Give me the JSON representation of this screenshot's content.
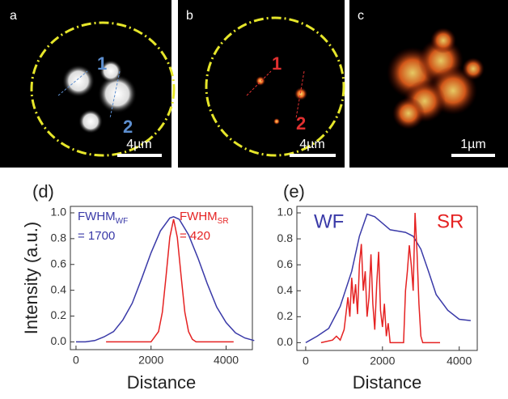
{
  "panels": [
    {
      "label": "a",
      "markers": [
        "1",
        "2"
      ],
      "scale_bar": "4µm"
    },
    {
      "label": "b",
      "markers": [
        "1",
        "2"
      ],
      "scale_bar": "4µm"
    },
    {
      "label": "c",
      "scale_bar": "1µm"
    }
  ],
  "chart_data": [
    {
      "type": "line",
      "panel_label": "(d)",
      "ylabel": "Intensity (a.u.)",
      "xlabel": "Distance",
      "xlim": [
        -150,
        4700
      ],
      "ylim": [
        -0.06,
        1.05
      ],
      "xticks": [
        0,
        2000,
        4000
      ],
      "yticks": [
        {
          "value": 0,
          "label": "0.0"
        },
        0.2,
        0.4,
        0.6,
        0.8,
        {
          "value": 1,
          "label": "1.0"
        }
      ],
      "annotations": [
        {
          "text": "FWHM",
          "subscript": "WF",
          "color": "#3a3aa8"
        },
        {
          "text": "= 1700",
          "color": "#3a3aa8"
        },
        {
          "text": "FWHM",
          "subscript": "SR",
          "color": "#e52222"
        },
        {
          "text": "= 420",
          "color": "#e52222"
        }
      ],
      "series": [
        {
          "color": "#3a3aa8",
          "x": [
            0,
            250,
            500,
            750,
            1000,
            1250,
            1500,
            1750,
            2000,
            2250,
            2500,
            2600,
            2750,
            3000,
            3250,
            3500,
            3750,
            4000,
            4250,
            4500,
            4750
          ],
          "values": [
            0.0,
            0.0,
            0.01,
            0.04,
            0.08,
            0.17,
            0.3,
            0.49,
            0.69,
            0.86,
            0.96,
            0.97,
            0.95,
            0.83,
            0.65,
            0.45,
            0.27,
            0.15,
            0.07,
            0.03,
            0.01
          ]
        },
        {
          "color": "#e52222",
          "x": [
            800,
            2000,
            2200,
            2300,
            2400,
            2500,
            2600,
            2700,
            2800,
            2900,
            3000,
            3100,
            3200,
            4200
          ],
          "values": [
            0,
            0,
            0.08,
            0.23,
            0.51,
            0.81,
            0.95,
            0.81,
            0.51,
            0.23,
            0.08,
            0.02,
            0,
            0
          ]
        }
      ]
    },
    {
      "type": "line",
      "panel_label": "(e)",
      "xlabel": "Distance",
      "xlim": [
        -230,
        4470
      ],
      "ylim": [
        -0.06,
        1.05
      ],
      "xticks": [
        0,
        2000,
        4000
      ],
      "yticks": [
        {
          "value": 0,
          "label": "0.0"
        },
        0.2,
        0.4,
        0.6,
        0.8,
        {
          "value": 1,
          "label": "1.0"
        }
      ],
      "series": [
        {
          "name": "WF",
          "color": "#3a3aa8",
          "x": [
            0,
            300,
            600,
            900,
            1200,
            1400,
            1600,
            1800,
            2000,
            2200,
            2400,
            2600,
            2800,
            3000,
            3200,
            3400,
            3700,
            4000,
            4300
          ],
          "values": [
            0.0,
            0.05,
            0.11,
            0.28,
            0.55,
            0.82,
            0.99,
            0.97,
            0.92,
            0.87,
            0.86,
            0.85,
            0.82,
            0.72,
            0.55,
            0.37,
            0.25,
            0.18,
            0.17
          ]
        },
        {
          "name": "SR",
          "color": "#e52222",
          "x": [
            400,
            700,
            800,
            900,
            1000,
            1100,
            1150,
            1200,
            1250,
            1300,
            1350,
            1400,
            1450,
            1500,
            1550,
            1600,
            1650,
            1700,
            1750,
            1800,
            1850,
            1900,
            1950,
            2000,
            2050,
            2100,
            2150,
            2200,
            2300,
            2550,
            2600,
            2650,
            2700,
            2750,
            2800,
            2850,
            2900,
            2950,
            3000,
            3050,
            3500
          ],
          "values": [
            0,
            0.02,
            0.05,
            0.02,
            0.1,
            0.35,
            0.2,
            0.5,
            0.3,
            0.45,
            0.22,
            0.6,
            0.76,
            0.4,
            0.55,
            0.2,
            0.35,
            0.68,
            0.3,
            0.1,
            0.45,
            0.7,
            0.25,
            0.12,
            0.3,
            0.05,
            0.15,
            0,
            0,
            0,
            0.4,
            0.55,
            0.75,
            0.6,
            0.4,
            1.0,
            0.7,
            0.3,
            0.05,
            0,
            0
          ]
        }
      ]
    }
  ]
}
